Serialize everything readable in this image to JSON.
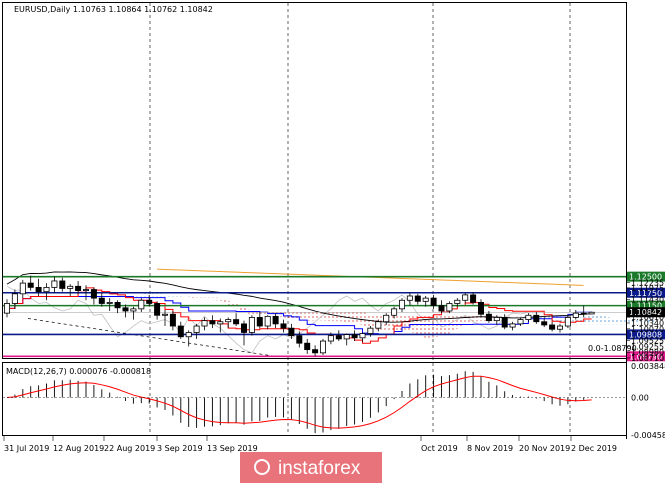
{
  "title": "EURUSD,Daily  1.10763 1.10864 1.10762 1.10842",
  "watermark": "instaforex",
  "colors": {
    "level_green": "#1a7a2a",
    "level_blue": "#0a1a8a",
    "level_magenta": "#e0188a",
    "current_price": "#9a9a9a",
    "kumo_bull": "#3d8fd6",
    "kumo_bear": "#d04040",
    "kijun": "#0000ff",
    "tenkan": "#ff0000",
    "ma_long": "#f0a030",
    "ma_black": "#000000",
    "chikou": "#c0c0c0",
    "macd_signal": "#ff0000",
    "watermark_bg": "#e8737a"
  },
  "chart_data": [
    {
      "type": "candlestick",
      "title": "EURUSD,Daily  1.10763 1.10864 1.10762 1.10842",
      "ylim": [
        1.0871,
        1.2525
      ],
      "y_ticks": [
        "1.12500",
        "1.12235",
        "1.11975",
        "1.11750",
        "1.11430",
        "1.11150",
        "1.10842",
        "1.10610",
        "1.10340",
        "1.10070",
        "1.09808",
        "1.09525",
        "1.09255",
        "1.08980",
        "1.08790",
        "1.08710"
      ],
      "x_labels": [
        "31 Jul 2019",
        "12 Aug 2019",
        "22 Aug 2019",
        "3 Sep 2019",
        "13 Sep 2019",
        "Oct 2019",
        "8 Nov 2019",
        "20 Nov 2019",
        "2 Dec 2019"
      ],
      "levels": [
        {
          "value": 1.125,
          "label": "1.12500",
          "color_key": "level_green"
        },
        {
          "value": 1.1175,
          "label": "1.11750",
          "color_key": "level_blue"
        },
        {
          "value": 1.1115,
          "label": "1.11150",
          "color_key": "level_green"
        },
        {
          "value": 1.09808,
          "label": "1.09808",
          "color_key": "level_blue"
        },
        {
          "value": 1.0879,
          "label": "1.08790",
          "color_key": "level_magenta"
        }
      ],
      "current_price": {
        "value": 1.10842,
        "label": "1.10842"
      },
      "fib_label": "0.0-1.08790",
      "last_bar": {
        "open": 1.10763,
        "high": 1.10864,
        "low": 1.10762,
        "close": 1.10842
      },
      "candles": [
        [
          1.108,
          1.1145,
          1.106,
          1.1125
        ],
        [
          1.1125,
          1.119,
          1.11,
          1.117
        ],
        [
          1.117,
          1.1235,
          1.115,
          1.122
        ],
        [
          1.122,
          1.1255,
          1.1185,
          1.12
        ],
        [
          1.12,
          1.124,
          1.116,
          1.118
        ],
        [
          1.118,
          1.122,
          1.114,
          1.12
        ],
        [
          1.12,
          1.125,
          1.1175,
          1.123
        ],
        [
          1.123,
          1.1245,
          1.118,
          1.1195
        ],
        [
          1.1195,
          1.1215,
          1.116,
          1.1205
        ],
        [
          1.1205,
          1.123,
          1.117,
          1.1185
        ],
        [
          1.1185,
          1.121,
          1.114,
          1.119
        ],
        [
          1.119,
          1.12,
          1.112,
          1.115
        ],
        [
          1.115,
          1.1175,
          1.111,
          1.1125
        ],
        [
          1.1125,
          1.115,
          1.109,
          1.113
        ],
        [
          1.113,
          1.114,
          1.108,
          1.1105
        ],
        [
          1.1105,
          1.112,
          1.106,
          1.109
        ],
        [
          1.109,
          1.111,
          1.105,
          1.11
        ],
        [
          1.11,
          1.115,
          1.1085,
          1.114
        ],
        [
          1.114,
          1.1165,
          1.111,
          1.1125
        ],
        [
          1.1125,
          1.1135,
          1.105,
          1.107
        ],
        [
          1.107,
          1.1095,
          1.102,
          1.1075
        ],
        [
          1.1075,
          1.109,
          1.1,
          1.102
        ],
        [
          1.102,
          1.104,
          1.096,
          1.097
        ],
        [
          1.097,
          1.1,
          1.0925,
          1.099
        ],
        [
          1.099,
          1.103,
          1.096,
          1.102
        ],
        [
          1.102,
          1.106,
          1.1,
          1.1045
        ],
        [
          1.1045,
          1.107,
          1.101,
          1.103
        ],
        [
          1.103,
          1.1055,
          1.099,
          1.104
        ],
        [
          1.104,
          1.106,
          1.101,
          1.105
        ],
        [
          1.105,
          1.108,
          1.102,
          1.103
        ],
        [
          1.103,
          1.1045,
          1.093,
          1.099
        ],
        [
          1.099,
          1.107,
          1.0975,
          1.106
        ],
        [
          1.106,
          1.1085,
          1.101,
          1.102
        ],
        [
          1.102,
          1.107,
          1.1005,
          1.1065
        ],
        [
          1.1065,
          1.108,
          1.101,
          1.103
        ],
        [
          1.103,
          1.105,
          1.099,
          1.101
        ],
        [
          1.101,
          1.103,
          1.096,
          1.0975
        ],
        [
          1.0975,
          1.0995,
          1.092,
          1.094
        ],
        [
          1.094,
          1.096,
          1.089,
          1.091
        ],
        [
          1.091,
          1.093,
          1.0879,
          1.0895
        ],
        [
          1.0895,
          1.096,
          1.0885,
          1.095
        ],
        [
          1.095,
          1.099,
          1.0935,
          1.0975
        ],
        [
          1.0975,
          1.1,
          1.095,
          1.096
        ],
        [
          1.096,
          1.0985,
          1.093,
          1.098
        ],
        [
          1.098,
          1.1,
          1.095,
          1.0965
        ],
        [
          1.0965,
          1.099,
          1.0945,
          1.0985
        ],
        [
          1.0985,
          1.102,
          1.097,
          1.101
        ],
        [
          1.101,
          1.105,
          1.0995,
          1.104
        ],
        [
          1.104,
          1.108,
          1.1025,
          1.107
        ],
        [
          1.107,
          1.111,
          1.1055,
          1.11
        ],
        [
          1.11,
          1.115,
          1.1085,
          1.114
        ],
        [
          1.114,
          1.1175,
          1.1115,
          1.116
        ],
        [
          1.116,
          1.117,
          1.112,
          1.1135
        ],
        [
          1.1135,
          1.116,
          1.111,
          1.115
        ],
        [
          1.115,
          1.1165,
          1.11,
          1.1115
        ],
        [
          1.1115,
          1.114,
          1.108,
          1.109
        ],
        [
          1.109,
          1.1135,
          1.108,
          1.1125
        ],
        [
          1.1125,
          1.115,
          1.111,
          1.114
        ],
        [
          1.114,
          1.1175,
          1.1125,
          1.1165
        ],
        [
          1.1165,
          1.1178,
          1.112,
          1.113
        ],
        [
          1.113,
          1.1145,
          1.1065,
          1.1075
        ],
        [
          1.1075,
          1.109,
          1.1035,
          1.1045
        ],
        [
          1.1045,
          1.107,
          1.1025,
          1.106
        ],
        [
          1.106,
          1.1075,
          1.1005,
          1.1015
        ],
        [
          1.1015,
          1.104,
          1.1,
          1.103
        ],
        [
          1.103,
          1.106,
          1.102,
          1.105
        ],
        [
          1.105,
          1.108,
          1.104,
          1.107
        ],
        [
          1.107,
          1.1085,
          1.103,
          1.104
        ],
        [
          1.104,
          1.106,
          1.1015,
          1.1025
        ],
        [
          1.1025,
          1.104,
          1.0995,
          1.1005
        ],
        [
          1.1005,
          1.103,
          1.099,
          1.102
        ],
        [
          1.102,
          1.107,
          1.101,
          1.106
        ],
        [
          1.106,
          1.1095,
          1.105,
          1.108
        ],
        [
          1.108,
          1.1115,
          1.106,
          1.1076
        ],
        [
          1.10763,
          1.10864,
          1.10762,
          1.10842
        ]
      ]
    },
    {
      "type": "histogram",
      "title": "MACD(12,26,7) 0.000076 -0.000818",
      "ylim": [
        -0.0046,
        0.004
      ],
      "y_ticks": [
        "0.003848",
        "0.00",
        "-0.004581"
      ]
    }
  ]
}
